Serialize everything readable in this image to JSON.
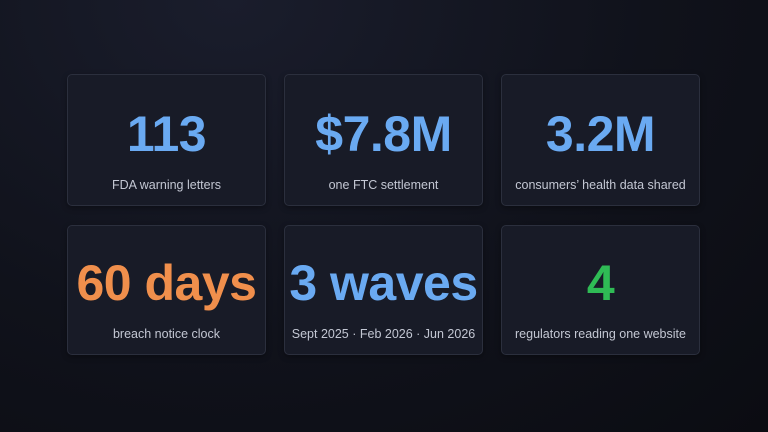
{
  "accent_colors": {
    "blue": "#6aaaf2",
    "orange": "#f08f4c",
    "green": "#2fbb55"
  },
  "stats": [
    {
      "value": "113",
      "label": "FDA warning letters",
      "color": "#6aaaf2"
    },
    {
      "value": "$7.8M",
      "label": "one FTC settlement",
      "color": "#6aaaf2"
    },
    {
      "value": "3.2M",
      "label": "consumers’ health data shared",
      "color": "#6aaaf2"
    },
    {
      "value": "60 days",
      "label": "breach notice clock",
      "color": "#f08f4c"
    },
    {
      "value": "3 waves",
      "label": "Sept 2025 · Feb 2026 · Jun 2026",
      "color": "#6aaaf2"
    },
    {
      "value": "4",
      "label": "regulators reading one website",
      "color": "#2fbb55"
    }
  ]
}
